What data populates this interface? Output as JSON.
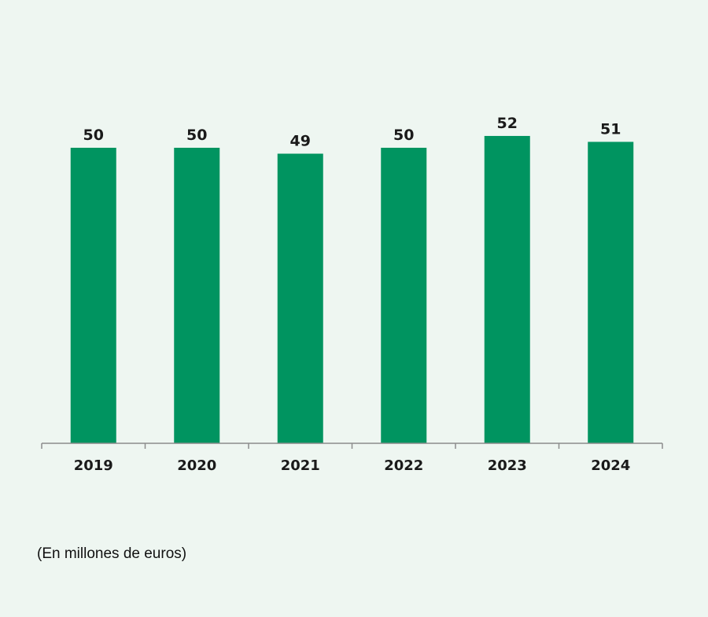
{
  "chart_data": {
    "type": "bar",
    "categories": [
      "2019",
      "2020",
      "2021",
      "2022",
      "2023",
      "2024"
    ],
    "values": [
      50,
      50,
      49,
      50,
      52,
      51
    ],
    "title": "",
    "xlabel": "",
    "ylabel": "",
    "ylim": [
      0,
      54
    ],
    "grid": false,
    "legend": "none",
    "bar_color": "#009460",
    "axis_color": "#8c8c8c",
    "data_labels": true
  },
  "footnote": "(En millones de euros)",
  "colors": {
    "background": "#eef6f1",
    "text": "#1a1a1a"
  }
}
